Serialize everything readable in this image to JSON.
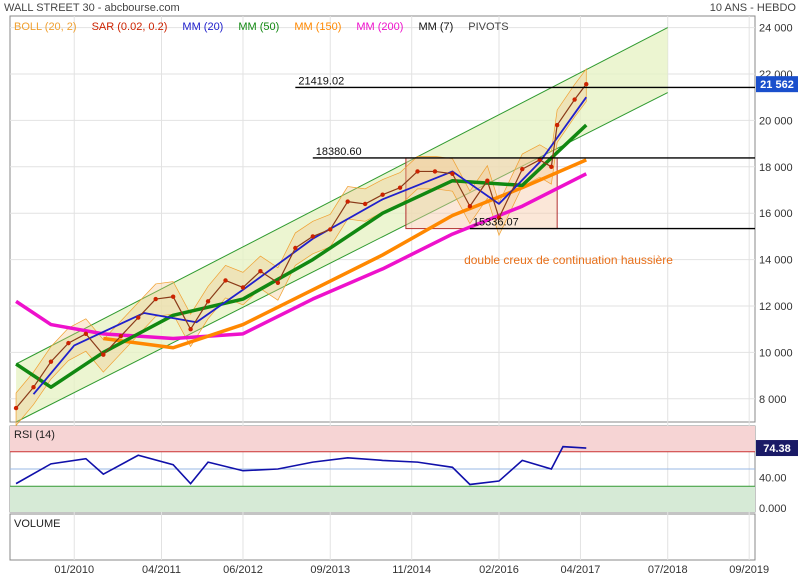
{
  "header": {
    "title": "WALL STREET 30 - abcbourse.com",
    "period": "10 ANS - HEBDO"
  },
  "legend": [
    {
      "label": "BOLL (20, 2)",
      "color": "#f0a030"
    },
    {
      "label": "SAR (0.02, 0.2)",
      "color": "#cc2200"
    },
    {
      "label": "MM (20)",
      "color": "#2020cc"
    },
    {
      "label": "MM (50)",
      "color": "#118811"
    },
    {
      "label": "MM (150)",
      "color": "#ff8800"
    },
    {
      "label": "MM (200)",
      "color": "#ee11cc"
    },
    {
      "label": "MM (7)",
      "color": "#111111"
    },
    {
      "label": "PIVOTS",
      "color": "#444444"
    }
  ],
  "levels": [
    {
      "label": "21419.02",
      "value": 21419.02
    },
    {
      "label": "18380.60",
      "value": 18380.6
    },
    {
      "label": "15336.07",
      "value": 15336.07
    }
  ],
  "annotation": "double creux de continuation haussière",
  "price_badge": "21 562",
  "rsi_badge": "74.38",
  "panels": {
    "rsi_label": "RSI (14)",
    "volume_label": "VOLUME"
  },
  "y_ticks": [
    "24 000",
    "22 000",
    "20 000",
    "18 000",
    "16 000",
    "14 000",
    "12 000",
    "10 000",
    "8 000"
  ],
  "rsi_ticks": [
    "40.00",
    "0.000"
  ],
  "x_ticks": [
    "01/2010",
    "04/2011",
    "06/2012",
    "09/2013",
    "11/2014",
    "02/2016",
    "04/2017",
    "07/2018",
    "09/2019"
  ],
  "chart_data": {
    "type": "line",
    "x_axis": "date",
    "ylim": [
      7000,
      24500
    ],
    "rsi_ylim": [
      0,
      100
    ],
    "close_series": [
      {
        "x": "2009-03",
        "y": 7600
      },
      {
        "x": "2009-06",
        "y": 8500
      },
      {
        "x": "2009-09",
        "y": 9600
      },
      {
        "x": "2009-12",
        "y": 10400
      },
      {
        "x": "2010-03",
        "y": 10800
      },
      {
        "x": "2010-06",
        "y": 9900
      },
      {
        "x": "2010-09",
        "y": 10700
      },
      {
        "x": "2010-12",
        "y": 11500
      },
      {
        "x": "2011-03",
        "y": 12300
      },
      {
        "x": "2011-06",
        "y": 12400
      },
      {
        "x": "2011-09",
        "y": 11000
      },
      {
        "x": "2011-12",
        "y": 12200
      },
      {
        "x": "2012-03",
        "y": 13100
      },
      {
        "x": "2012-06",
        "y": 12800
      },
      {
        "x": "2012-09",
        "y": 13500
      },
      {
        "x": "2012-12",
        "y": 13000
      },
      {
        "x": "2013-03",
        "y": 14500
      },
      {
        "x": "2013-06",
        "y": 15000
      },
      {
        "x": "2013-09",
        "y": 15300
      },
      {
        "x": "2013-12",
        "y": 16500
      },
      {
        "x": "2014-03",
        "y": 16400
      },
      {
        "x": "2014-06",
        "y": 16800
      },
      {
        "x": "2014-09",
        "y": 17100
      },
      {
        "x": "2014-12",
        "y": 17800
      },
      {
        "x": "2015-03",
        "y": 17800
      },
      {
        "x": "2015-06",
        "y": 17700
      },
      {
        "x": "2015-09",
        "y": 16300
      },
      {
        "x": "2015-12",
        "y": 17400
      },
      {
        "x": "2016-02",
        "y": 15800
      },
      {
        "x": "2016-06",
        "y": 17900
      },
      {
        "x": "2016-09",
        "y": 18300
      },
      {
        "x": "2016-11",
        "y": 18000
      },
      {
        "x": "2016-12",
        "y": 19800
      },
      {
        "x": "2017-03",
        "y": 20900
      },
      {
        "x": "2017-05",
        "y": 21562
      }
    ],
    "mm20": [
      {
        "x": "2009-06",
        "y": 8200
      },
      {
        "x": "2010-01",
        "y": 10300
      },
      {
        "x": "2011-01",
        "y": 11700
      },
      {
        "x": "2011-10",
        "y": 11300
      },
      {
        "x": "2012-06",
        "y": 12700
      },
      {
        "x": "2013-06",
        "y": 14900
      },
      {
        "x": "2014-06",
        "y": 16600
      },
      {
        "x": "2015-06",
        "y": 17800
      },
      {
        "x": "2016-02",
        "y": 16400
      },
      {
        "x": "2016-09",
        "y": 18200
      },
      {
        "x": "2017-05",
        "y": 21000
      }
    ],
    "mm50": [
      {
        "x": "2009-03",
        "y": 9500
      },
      {
        "x": "2009-09",
        "y": 8500
      },
      {
        "x": "2010-06",
        "y": 10000
      },
      {
        "x": "2011-06",
        "y": 11600
      },
      {
        "x": "2012-06",
        "y": 12300
      },
      {
        "x": "2013-06",
        "y": 14000
      },
      {
        "x": "2014-06",
        "y": 16000
      },
      {
        "x": "2015-06",
        "y": 17400
      },
      {
        "x": "2016-06",
        "y": 17200
      },
      {
        "x": "2017-05",
        "y": 19800
      }
    ],
    "mm150": [
      {
        "x": "2010-06",
        "y": 10600
      },
      {
        "x": "2011-06",
        "y": 10200
      },
      {
        "x": "2012-06",
        "y": 11200
      },
      {
        "x": "2013-06",
        "y": 12700
      },
      {
        "x": "2014-06",
        "y": 14200
      },
      {
        "x": "2015-06",
        "y": 15900
      },
      {
        "x": "2016-06",
        "y": 17100
      },
      {
        "x": "2017-05",
        "y": 18300
      }
    ],
    "mm200": [
      {
        "x": "2009-03",
        "y": 12200
      },
      {
        "x": "2009-09",
        "y": 11200
      },
      {
        "x": "2010-06",
        "y": 10800
      },
      {
        "x": "2011-06",
        "y": 10600
      },
      {
        "x": "2012-06",
        "y": 10800
      },
      {
        "x": "2013-06",
        "y": 12300
      },
      {
        "x": "2014-06",
        "y": 13600
      },
      {
        "x": "2015-06",
        "y": 15100
      },
      {
        "x": "2016-06",
        "y": 16300
      },
      {
        "x": "2017-05",
        "y": 17700
      }
    ],
    "channel": {
      "upper": [
        {
          "x": "2009-03",
          "y": 9500
        },
        {
          "x": "2018-07",
          "y": 24000
        }
      ],
      "lower": [
        {
          "x": "2009-03",
          "y": 7000
        },
        {
          "x": "2018-07",
          "y": 21200
        }
      ]
    },
    "rsi": [
      {
        "x": "2009-03",
        "y": 33
      },
      {
        "x": "2009-09",
        "y": 56
      },
      {
        "x": "2010-03",
        "y": 62
      },
      {
        "x": "2010-06",
        "y": 44
      },
      {
        "x": "2010-12",
        "y": 66
      },
      {
        "x": "2011-06",
        "y": 55
      },
      {
        "x": "2011-09",
        "y": 33
      },
      {
        "x": "2011-12",
        "y": 58
      },
      {
        "x": "2012-06",
        "y": 48
      },
      {
        "x": "2012-12",
        "y": 50
      },
      {
        "x": "2013-06",
        "y": 58
      },
      {
        "x": "2013-12",
        "y": 63
      },
      {
        "x": "2014-06",
        "y": 60
      },
      {
        "x": "2014-12",
        "y": 58
      },
      {
        "x": "2015-06",
        "y": 52
      },
      {
        "x": "2015-09",
        "y": 32
      },
      {
        "x": "2016-02",
        "y": 36
      },
      {
        "x": "2016-06",
        "y": 60
      },
      {
        "x": "2016-11",
        "y": 50
      },
      {
        "x": "2017-01",
        "y": 76
      },
      {
        "x": "2017-05",
        "y": 74.38
      }
    ],
    "rsi_levels": [
      70,
      30
    ]
  }
}
